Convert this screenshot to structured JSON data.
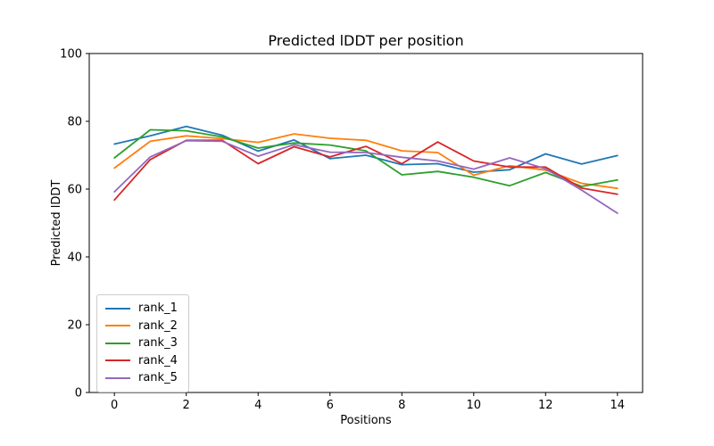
{
  "chart_data": {
    "type": "line",
    "title": "Predicted lDDT per position",
    "xlabel": "Positions",
    "ylabel": "Predicted lDDT",
    "xlim": [
      -0.7,
      14.7
    ],
    "ylim": [
      0,
      100
    ],
    "xticks": [
      0,
      2,
      4,
      6,
      8,
      10,
      12,
      14
    ],
    "yticks": [
      0,
      20,
      40,
      60,
      80,
      100
    ],
    "grid": false,
    "legend_position": "lower left",
    "x": [
      0,
      1,
      2,
      3,
      4,
      5,
      6,
      7,
      8,
      9,
      10,
      11,
      12,
      13,
      14
    ],
    "series": [
      {
        "name": "rank_1",
        "color": "#1f77b4",
        "values": [
          73.3,
          75.7,
          78.5,
          75.9,
          71.2,
          74.5,
          69.0,
          70.0,
          67.2,
          67.5,
          65.0,
          65.7,
          70.4,
          67.4,
          69.9
        ]
      },
      {
        "name": "rank_2",
        "color": "#ff7f0e",
        "values": [
          66.2,
          74.1,
          75.7,
          74.9,
          73.8,
          76.3,
          75.0,
          74.4,
          71.3,
          70.8,
          64.1,
          66.9,
          65.6,
          61.7,
          60.2
        ]
      },
      {
        "name": "rank_3",
        "color": "#2ca02c",
        "values": [
          69.2,
          77.5,
          77.2,
          75.4,
          72.1,
          73.6,
          73.0,
          71.3,
          64.2,
          65.2,
          63.5,
          61.0,
          64.9,
          60.8,
          62.7
        ]
      },
      {
        "name": "rank_4",
        "color": "#d62728",
        "values": [
          56.8,
          68.7,
          74.4,
          74.4,
          67.5,
          72.5,
          69.5,
          72.6,
          67.5,
          73.9,
          68.3,
          66.5,
          66.5,
          60.3,
          58.5
        ]
      },
      {
        "name": "rank_5",
        "color": "#9467bd",
        "values": [
          59.2,
          69.5,
          74.3,
          74.1,
          69.7,
          73.1,
          70.9,
          70.8,
          69.4,
          68.3,
          65.9,
          69.2,
          66.0,
          59.7,
          52.9
        ]
      }
    ],
    "axis_color": "#000000",
    "background_color": "#ffffff"
  }
}
